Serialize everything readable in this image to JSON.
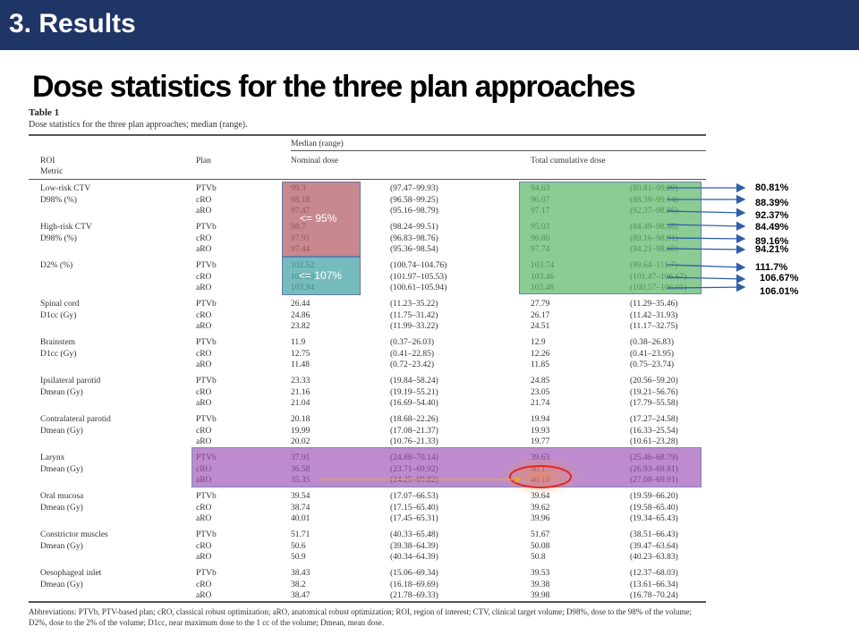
{
  "header": {
    "title": "3. Results"
  },
  "slide": {
    "title": "Dose statistics for the three plan approaches"
  },
  "table": {
    "label": "Table 1",
    "caption": "Dose statistics for the three plan approaches; median (range).",
    "headers": {
      "roi": "ROI",
      "metric": "Metric",
      "plan": "Plan",
      "median_range": "Median (range)",
      "nominal": "Nominal dose",
      "total": "Total cumulative dose"
    },
    "groups": [
      {
        "roi": "Low-risk CTV",
        "metric": "D98% (%)",
        "rows": [
          {
            "plan": "PTVb",
            "nom": "99.3",
            "nom_r": "(97.47–99.93)",
            "tot": "94.63",
            "tot_r": "(80.81–99.09)"
          },
          {
            "plan": "cRO",
            "nom": "98.18",
            "nom_r": "(96.58–99.25)",
            "tot": "96.07",
            "tot_r": "(88.39–99.14)"
          },
          {
            "plan": "aRO",
            "nom": "97.47",
            "nom_r": "(95.16–98.79)",
            "tot": "97.17",
            "tot_r": "(92.37–98.96)"
          }
        ]
      },
      {
        "roi": "High-risk CTV",
        "metric": "D98% (%)",
        "rows": [
          {
            "plan": "PTVb",
            "nom": "98.7",
            "nom_r": "(98.24–99.51)",
            "tot": "95.03",
            "tot_r": "(84.49–98.46)"
          },
          {
            "plan": "cRO",
            "nom": "97.91",
            "nom_r": "(96.83–98.76)",
            "tot": "96.86",
            "tot_r": "(89.16–98.91)"
          },
          {
            "plan": "aRO",
            "nom": "97.44",
            "nom_r": "(95.36–98.54)",
            "tot": "97.74",
            "tot_r": "(94.21–98.60)"
          }
        ]
      },
      {
        "roi": "D2% (%)",
        "metric": "",
        "rows": [
          {
            "plan": "PTVb",
            "nom": "102.52",
            "nom_r": "(100.74–104.76)",
            "tot": "103.74",
            "tot_r": "(99.64–111.7)"
          },
          {
            "plan": "cRO",
            "nom": "103.19",
            "nom_r": "(101.97–105.53)",
            "tot": "103.46",
            "tot_r": "(101.47–106.67)"
          },
          {
            "plan": "aRO",
            "nom": "103.94",
            "nom_r": "(100.61–105.94)",
            "tot": "103.48",
            "tot_r": "(100.57–106.01)"
          }
        ]
      },
      {
        "roi": "Spinal cord",
        "metric": "D1cc (Gy)",
        "rows": [
          {
            "plan": "PTVb",
            "nom": "26.44",
            "nom_r": "(11.23–35.22)",
            "tot": "27.79",
            "tot_r": "(11.29–35.46)"
          },
          {
            "plan": "cRO",
            "nom": "24.86",
            "nom_r": "(11.75–31.42)",
            "tot": "26.17",
            "tot_r": "(11.42–31.93)"
          },
          {
            "plan": "aRO",
            "nom": "23.82",
            "nom_r": "(11.99–33.22)",
            "tot": "24.51",
            "tot_r": "(11.17–32.75)"
          }
        ]
      },
      {
        "roi": "Brainstem",
        "metric": "D1cc (Gy)",
        "rows": [
          {
            "plan": "PTVb",
            "nom": "11.9",
            "nom_r": "(0.37–26.03)",
            "tot": "12.9",
            "tot_r": "(0.38–26.83)"
          },
          {
            "plan": "cRO",
            "nom": "12.75",
            "nom_r": "(0.41–22.85)",
            "tot": "12.26",
            "tot_r": "(0.41–23.95)"
          },
          {
            "plan": "aRO",
            "nom": "11.48",
            "nom_r": "(0.72–23.42)",
            "tot": "11.85",
            "tot_r": "(0.75–23.74)"
          }
        ]
      },
      {
        "roi": "Ipsilateral parotid",
        "metric": "Dmean (Gy)",
        "rows": [
          {
            "plan": "PTVb",
            "nom": "23.33",
            "nom_r": "(19.84–58.24)",
            "tot": "24.85",
            "tot_r": "(20.56–59.20)"
          },
          {
            "plan": "cRO",
            "nom": "21.16",
            "nom_r": "(19.19–55.21)",
            "tot": "23.05",
            "tot_r": "(19.21–56.76)"
          },
          {
            "plan": "aRO",
            "nom": "21.04",
            "nom_r": "(16.69–54.40)",
            "tot": "21.74",
            "tot_r": "(17.79–55.58)"
          }
        ]
      },
      {
        "roi": "Contralateral parotid",
        "metric": "Dmean (Gy)",
        "rows": [
          {
            "plan": "PTVb",
            "nom": "20.18",
            "nom_r": "(18.68–22.26)",
            "tot": "19.94",
            "tot_r": "(17.27–24.58)"
          },
          {
            "plan": "cRO",
            "nom": "19.99",
            "nom_r": "(17.08–21.37)",
            "tot": "19.93",
            "tot_r": "(16.33–25.54)"
          },
          {
            "plan": "aRO",
            "nom": "20.02",
            "nom_r": "(10.76–21.33)",
            "tot": "19.77",
            "tot_r": "(10.61–23.28)"
          }
        ]
      },
      {
        "roi": "Larynx",
        "metric": "Dmean (Gy)",
        "rows": [
          {
            "plan": "PTVb",
            "nom": "37.91",
            "nom_r": "(24.88–70.14)",
            "tot": "39.63",
            "tot_r": "(25.46–68.79)"
          },
          {
            "plan": "cRO",
            "nom": "36.58",
            "nom_r": "(23.71–69.92)",
            "tot": "40.1",
            "tot_r": "(26.93–69.81)"
          },
          {
            "plan": "aRO",
            "nom": "35.35",
            "nom_r": "(24.25–69.82)",
            "tot": "40.13",
            "tot_r": "(27.08–69.91)"
          }
        ]
      },
      {
        "roi": "Oral mucosa",
        "metric": "Dmean (Gy)",
        "rows": [
          {
            "plan": "PTVb",
            "nom": "39.54",
            "nom_r": "(17.07–66.53)",
            "tot": "39.64",
            "tot_r": "(19.59–66.20)"
          },
          {
            "plan": "cRO",
            "nom": "38.74",
            "nom_r": "(17.15–65.40)",
            "tot": "39.62",
            "tot_r": "(19.58–65.40)"
          },
          {
            "plan": "aRO",
            "nom": "40.01",
            "nom_r": "(17.45–65.31)",
            "tot": "39.96",
            "tot_r": "(19.34–65.43)"
          }
        ]
      },
      {
        "roi": "Constrictor muscles",
        "metric": "Dmean (Gy)",
        "rows": [
          {
            "plan": "PTVb",
            "nom": "51.71",
            "nom_r": "(40.33–65.48)",
            "tot": "51.67",
            "tot_r": "(38.51–66.43)"
          },
          {
            "plan": "cRO",
            "nom": "50.6",
            "nom_r": "(39.38–64.39)",
            "tot": "50.08",
            "tot_r": "(39.47–63.64)"
          },
          {
            "plan": "aRO",
            "nom": "50.9",
            "nom_r": "(40.34–64.39)",
            "tot": "50.8",
            "tot_r": "(40.23–63.83)"
          }
        ]
      },
      {
        "roi": "Oesophageal inlet",
        "metric": "Dmean (Gy)",
        "rows": [
          {
            "plan": "PTVb",
            "nom": "38.43",
            "nom_r": "(15.06–69.34)",
            "tot": "39.53",
            "tot_r": "(12.37–68.03)"
          },
          {
            "plan": "cRO",
            "nom": "38.2",
            "nom_r": "(16.18–69.69)",
            "tot": "39.38",
            "tot_r": "(13.61–66.34)"
          },
          {
            "plan": "aRO",
            "nom": "38.47",
            "nom_r": "(21.78–69.33)",
            "tot": "39.98",
            "tot_r": "(16.78–70.24)"
          }
        ]
      }
    ],
    "abbreviations": "Abbreviations: PTVb, PTV-based plan; cRO, classical robust optimization; aRO, anatomical robust optimization; ROI, region of interest; CTV, clinical target volume; D98%, dose to the 98% of the volume; D2%, dose to the 2% of the volume; D1cc, near maximum dose to the 1 cc of the volume; Dmean, mean dose."
  },
  "annotations": {
    "low_threshold": "<= 95%",
    "high_threshold": "<= 107%",
    "callouts": [
      "80.81%",
      "88.39%",
      "92.37%",
      "84.49%",
      "89.16%",
      "94.21%",
      "111.7%",
      "106.67%",
      "106.01%"
    ],
    "colors": {
      "header_bg": "#1f3566",
      "red_box": "#b5616a",
      "teal_box": "#4aa6a8",
      "green_box": "#5bb769",
      "purple_box": "#9c4fb5",
      "arrow_blue": "#2f5fa8",
      "highlight_red": "#e0281e",
      "arrow_yellow": "#e6a82c"
    }
  }
}
